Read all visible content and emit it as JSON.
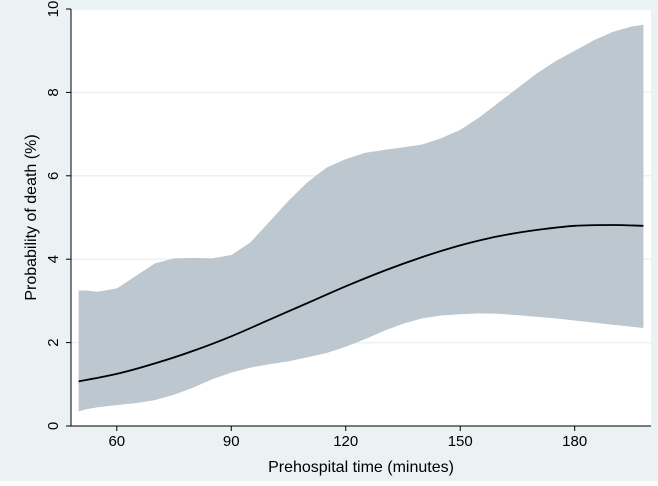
{
  "chart_data": {
    "type": "line",
    "xlabel": "Prehospital time (minutes)",
    "ylabel": "Probability of death (%)",
    "xlim": [
      48,
      200
    ],
    "ylim": [
      0,
      10
    ],
    "xticks": [
      60,
      90,
      120,
      150,
      180
    ],
    "yticks": [
      0,
      2,
      4,
      6,
      8,
      10
    ],
    "x_tick_labels": [
      "60",
      "90",
      "120",
      "150",
      "180"
    ],
    "y_tick_labels": [
      "0",
      "2",
      "4",
      "6",
      "8",
      "10"
    ],
    "grid": "horizontal",
    "legend": "none",
    "series": [
      {
        "kind": "line",
        "x": [
          50,
          60,
          70,
          80,
          90,
          100,
          110,
          120,
          130,
          140,
          150,
          160,
          170,
          180,
          190,
          198
        ],
        "y": [
          1.07,
          1.25,
          1.5,
          1.8,
          2.15,
          2.55,
          2.95,
          3.35,
          3.72,
          4.05,
          4.33,
          4.55,
          4.7,
          4.8,
          4.82,
          4.8
        ]
      },
      {
        "kind": "band",
        "x": [
          50,
          52,
          55,
          60,
          65,
          70,
          75,
          80,
          85,
          90,
          95,
          100,
          105,
          110,
          115,
          120,
          125,
          130,
          135,
          140,
          145,
          150,
          155,
          160,
          165,
          170,
          175,
          180,
          185,
          190,
          195,
          198
        ],
        "upper": [
          3.25,
          3.25,
          3.22,
          3.3,
          3.6,
          3.9,
          4.02,
          4.03,
          4.02,
          4.1,
          4.4,
          4.9,
          5.4,
          5.85,
          6.2,
          6.4,
          6.55,
          6.62,
          6.68,
          6.75,
          6.9,
          7.1,
          7.4,
          7.75,
          8.1,
          8.45,
          8.75,
          9.0,
          9.25,
          9.45,
          9.58,
          9.62
        ],
        "lower": [
          0.35,
          0.4,
          0.45,
          0.5,
          0.55,
          0.62,
          0.75,
          0.92,
          1.12,
          1.28,
          1.4,
          1.48,
          1.55,
          1.65,
          1.75,
          1.9,
          2.08,
          2.28,
          2.45,
          2.58,
          2.65,
          2.68,
          2.7,
          2.69,
          2.66,
          2.62,
          2.58,
          2.53,
          2.48,
          2.43,
          2.38,
          2.35
        ]
      }
    ],
    "colors": {
      "outer_background": "#eaf2f3",
      "plot_background": "#ffffff",
      "band_fill": "#bcc7d0",
      "line": "#000000",
      "grid": "#eaf2f3",
      "axis_text": "#000000"
    }
  }
}
